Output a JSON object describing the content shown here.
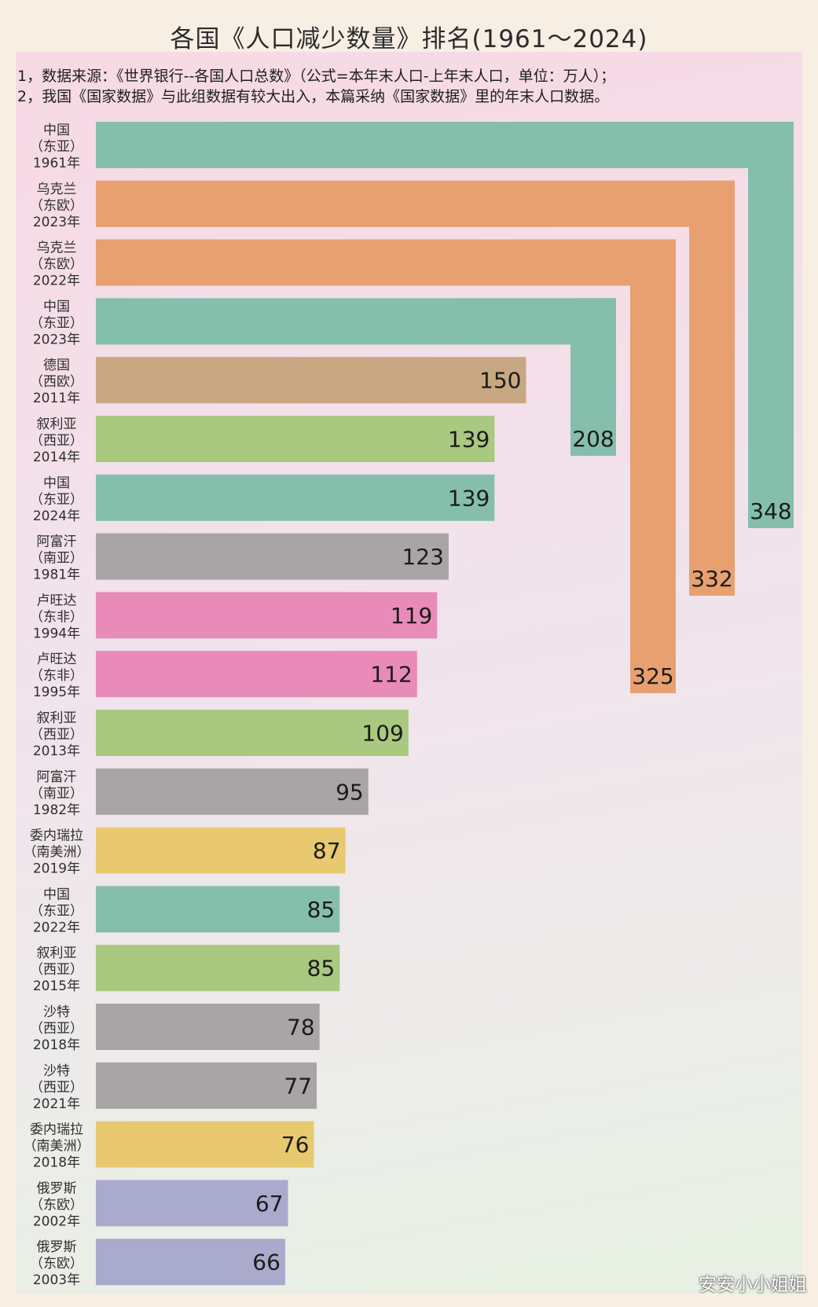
{
  "title": "各国《人口减少数量》排名(1961～2024)",
  "notes": [
    "1，数据来源：《世界银行--各国人口总数》（公式=本年末人口-上年末人口，单位：万人）；",
    "2，我国《国家数据》与此组数据有较大出入，本篇采纳《国家数据》里的年末人口数据。"
  ],
  "credit": "安安小小姐姐",
  "colors": {
    "east_asia": "#85bfac",
    "east_europe": "#e8a070",
    "west_europe": "#c8a882",
    "west_asia": "#a9c880",
    "south_asia": "#a9a5a6",
    "east_africa": "#e98bb8",
    "south_america": "#e8c970",
    "russia": "#a9aacc"
  },
  "chart_data": {
    "type": "bar",
    "orientation": "horizontal",
    "categories": [
      [
        "中国",
        "（东亚）",
        "1961年"
      ],
      [
        "乌克兰",
        "（东欧）",
        "2023年"
      ],
      [
        "乌克兰",
        "（东欧）",
        "2022年"
      ],
      [
        "中国",
        "（东亚）",
        "2023年"
      ],
      [
        "德国",
        "（西欧）",
        "2011年"
      ],
      [
        "叙利亚",
        "（西亚）",
        "2014年"
      ],
      [
        "中国",
        "（东亚）",
        "2024年"
      ],
      [
        "阿富汗",
        "（南亚）",
        "1981年"
      ],
      [
        "卢旺达",
        "（东非）",
        "1994年"
      ],
      [
        "卢旺达",
        "（东非）",
        "1995年"
      ],
      [
        "叙利亚",
        "（西亚）",
        "2013年"
      ],
      [
        "阿富汗",
        "（南亚）",
        "1982年"
      ],
      [
        "委内瑞拉",
        "（南美洲）",
        "2019年"
      ],
      [
        "中国",
        "（东亚）",
        "2022年"
      ],
      [
        "叙利亚",
        "（西亚）",
        "2015年"
      ],
      [
        "沙特",
        "（西亚）",
        "2018年"
      ],
      [
        "沙特",
        "（西亚）",
        "2021年"
      ],
      [
        "委内瑞拉",
        "（南美洲）",
        "2018年"
      ],
      [
        "俄罗斯",
        "（东欧）",
        "2002年"
      ],
      [
        "俄罗斯",
        "（东欧）",
        "2003年"
      ]
    ],
    "values": [
      348,
      332,
      325,
      208,
      150,
      139,
      139,
      123,
      119,
      112,
      109,
      95,
      87,
      85,
      85,
      78,
      77,
      76,
      67,
      66
    ],
    "region_colors": [
      "east_asia",
      "east_europe",
      "east_europe",
      "east_asia",
      "west_europe",
      "west_asia",
      "east_asia",
      "south_asia",
      "east_africa",
      "east_africa",
      "west_asia",
      "south_asia",
      "south_america",
      "east_asia",
      "west_asia",
      "south_asia",
      "south_asia",
      "south_america",
      "russia",
      "russia"
    ],
    "bent_bars": 4,
    "unit": "万人"
  }
}
